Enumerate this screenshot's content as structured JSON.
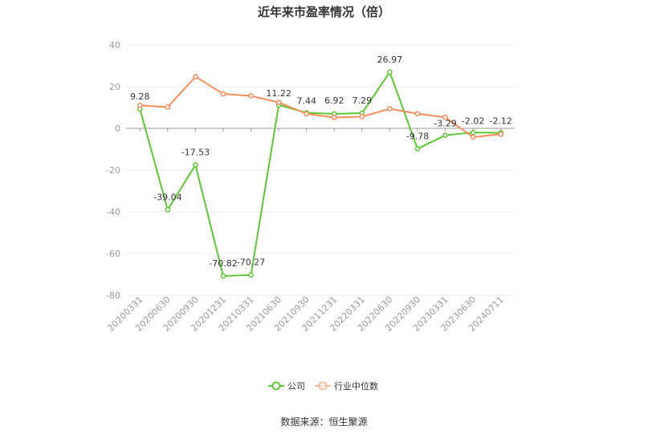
{
  "title": "近年来市盈率情况（倍）",
  "source": "数据来源：恒生聚源",
  "colors": {
    "company": "#5cc832",
    "industry": "#f58c5a",
    "grid": "#e8e8e8",
    "axis": "#999999"
  },
  "chart_data": {
    "type": "line",
    "title": "近年来市盈率情况（倍）",
    "xlabel": "",
    "ylabel": "",
    "ylim": [
      -80,
      40
    ],
    "yticks": [
      40,
      20,
      0,
      -20,
      -40,
      -60,
      -80
    ],
    "grid": true,
    "legend": "bottom-center",
    "categories": [
      "20200331",
      "20200630",
      "20200930",
      "20201231",
      "20210331",
      "20210630",
      "20210930",
      "20211231",
      "20220331",
      "20220630",
      "20220930",
      "20230331",
      "20230630",
      "20240711"
    ],
    "series": [
      {
        "name": "公司",
        "color": "#5cc832",
        "values": [
          9.28,
          -39.04,
          -17.53,
          -70.82,
          -70.27,
          11.22,
          7.44,
          6.92,
          7.29,
          26.97,
          -9.78,
          -3.29,
          -2.02,
          -2.12
        ],
        "labels": [
          "9.28",
          "-39.04",
          "-17.53",
          "-70.82",
          "-70.27",
          "11.22",
          "7.44",
          "6.92",
          "7.29",
          "26.97",
          "-9.78",
          "-3.29",
          "-2.02",
          "-2.12"
        ]
      },
      {
        "name": "行业中位数",
        "color": "#f58c5a",
        "values": [
          11.0,
          10.2,
          24.8,
          16.5,
          15.6,
          12.4,
          7.0,
          5.2,
          5.6,
          9.4,
          7.0,
          5.3,
          -4.2,
          -2.8
        ]
      }
    ]
  }
}
